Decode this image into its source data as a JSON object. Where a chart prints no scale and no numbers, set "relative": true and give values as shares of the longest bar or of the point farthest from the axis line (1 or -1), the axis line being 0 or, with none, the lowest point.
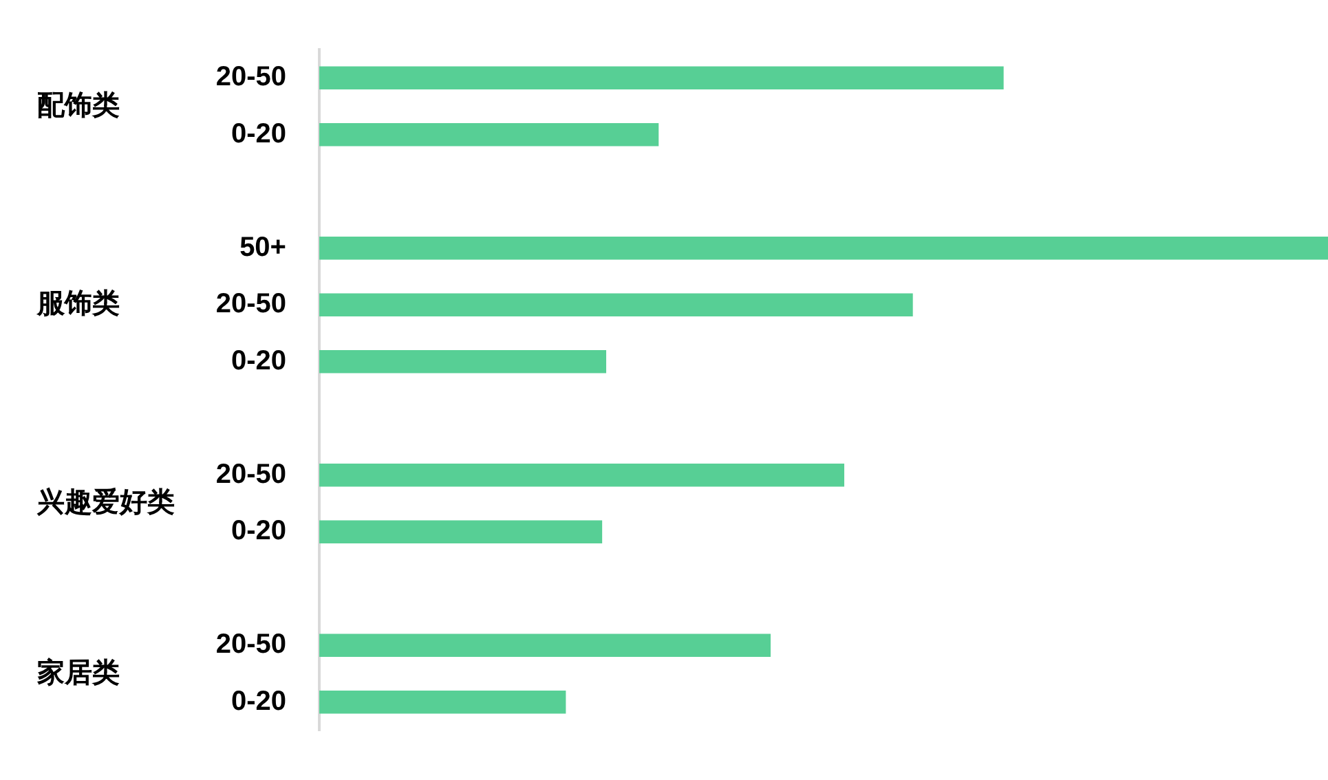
{
  "chart_data": {
    "type": "bar",
    "orientation": "horizontal",
    "relative": true,
    "categories": [
      "20-50",
      "0-20",
      null,
      "50+",
      "20-50",
      "0-20",
      null,
      "20-50",
      "0-20",
      null,
      "20-50",
      "0-20"
    ],
    "values": [
      0.678,
      0.336,
      null,
      1,
      0.588,
      0.284,
      null,
      0.52,
      0.28,
      null,
      0.447,
      0.244
    ],
    "color": "#57cf95",
    "annotations": [
      "配饰类",
      "服饰类",
      "兴趣爱好类",
      "家居类"
    ]
  }
}
